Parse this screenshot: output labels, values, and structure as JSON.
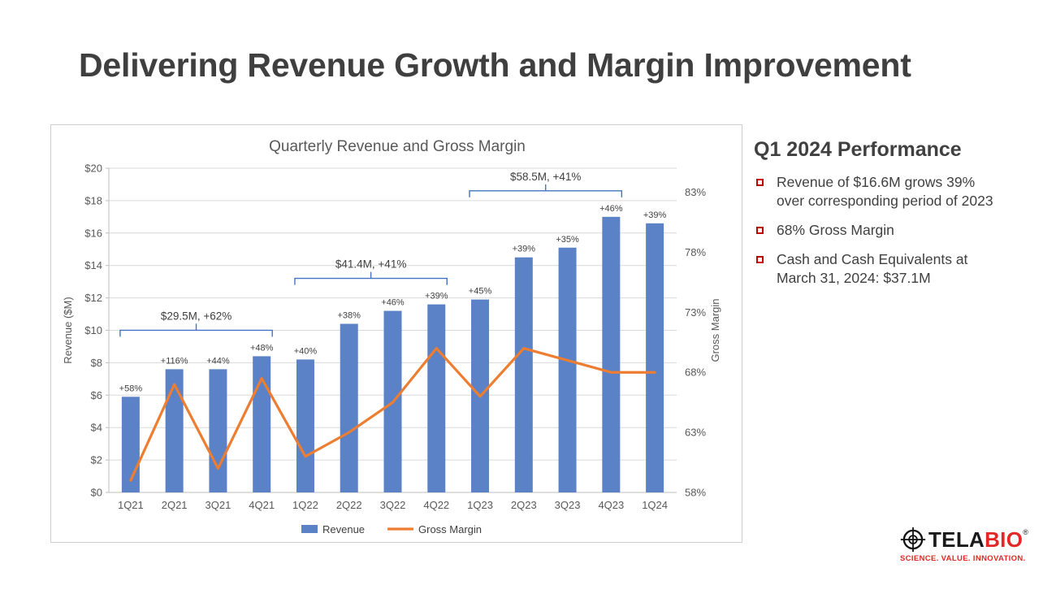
{
  "slide": {
    "title": "Delivering Revenue Growth and Margin Improvement"
  },
  "chart_data": {
    "type": "combo-bar-line",
    "title": "Quarterly Revenue and Gross Margin",
    "categories": [
      "1Q21",
      "2Q21",
      "3Q21",
      "4Q21",
      "1Q22",
      "2Q22",
      "3Q22",
      "4Q22",
      "1Q23",
      "2Q23",
      "3Q23",
      "4Q23",
      "1Q24"
    ],
    "series": [
      {
        "name": "Revenue",
        "type": "bar",
        "axis": "left",
        "color": "#5b82c6",
        "values": [
          5.9,
          7.6,
          7.6,
          8.4,
          8.2,
          10.4,
          11.2,
          11.6,
          11.9,
          14.5,
          15.1,
          17.0,
          16.6
        ],
        "point_labels": [
          "+58%",
          "+116%",
          "+44%",
          "+48%",
          "+40%",
          "+38%",
          "+46%",
          "+39%",
          "+45%",
          "+39%",
          "+35%",
          "+46%",
          "+39%"
        ]
      },
      {
        "name": "Gross Margin",
        "type": "line",
        "axis": "right",
        "color": "#ed7d31",
        "values": [
          59,
          67,
          60,
          67.5,
          61,
          63,
          65.5,
          70,
          66,
          70,
          69,
          68,
          68
        ]
      }
    ],
    "left_axis": {
      "title": "Revenue ($M)",
      "min": 0,
      "max": 20,
      "tick_values": [
        0,
        2,
        4,
        6,
        8,
        10,
        12,
        14,
        16,
        18,
        20
      ],
      "tick_labels": [
        "$0",
        "$2",
        "$4",
        "$6",
        "$8",
        "$10",
        "$12",
        "$14",
        "$16",
        "$18",
        "$20"
      ]
    },
    "right_axis": {
      "title": "Gross Margin",
      "min": 58,
      "max": 85,
      "tick_values": [
        58,
        63,
        68,
        73,
        78,
        83
      ],
      "tick_labels": [
        "58%",
        "63%",
        "68%",
        "73%",
        "78%",
        "83%"
      ]
    },
    "annotations": [
      {
        "text": "$29.5M, +62%",
        "from_index": 0,
        "to_index": 3
      },
      {
        "text": "$41.4M, +41%",
        "from_index": 4,
        "to_index": 7
      },
      {
        "text": "$58.5M, +41%",
        "from_index": 8,
        "to_index": 11
      }
    ],
    "legend": [
      "Revenue",
      "Gross Margin"
    ],
    "legend_position": "bottom",
    "grid": true
  },
  "performance": {
    "heading": "Q1 2024 Performance",
    "bullets": [
      "Revenue of $16.6M grows 39% over corresponding period of 2023",
      "68% Gross Margin",
      "Cash and Cash Equivalents at March 31, 2024: $37.1M"
    ]
  },
  "logo": {
    "brand_first": "TELA",
    "brand_second": "BIO",
    "registered_mark": "®",
    "tagline": "SCIENCE. VALUE. INNOVATION."
  },
  "theme": {
    "bar_blue": "#5b82c6",
    "line_orange": "#ed7d31",
    "bracket_blue": "#4472c4",
    "bullet_red": "#c00000",
    "logo_red": "#e32726",
    "title_gray": "#3f3f3f",
    "axis_gray": "#595959"
  }
}
